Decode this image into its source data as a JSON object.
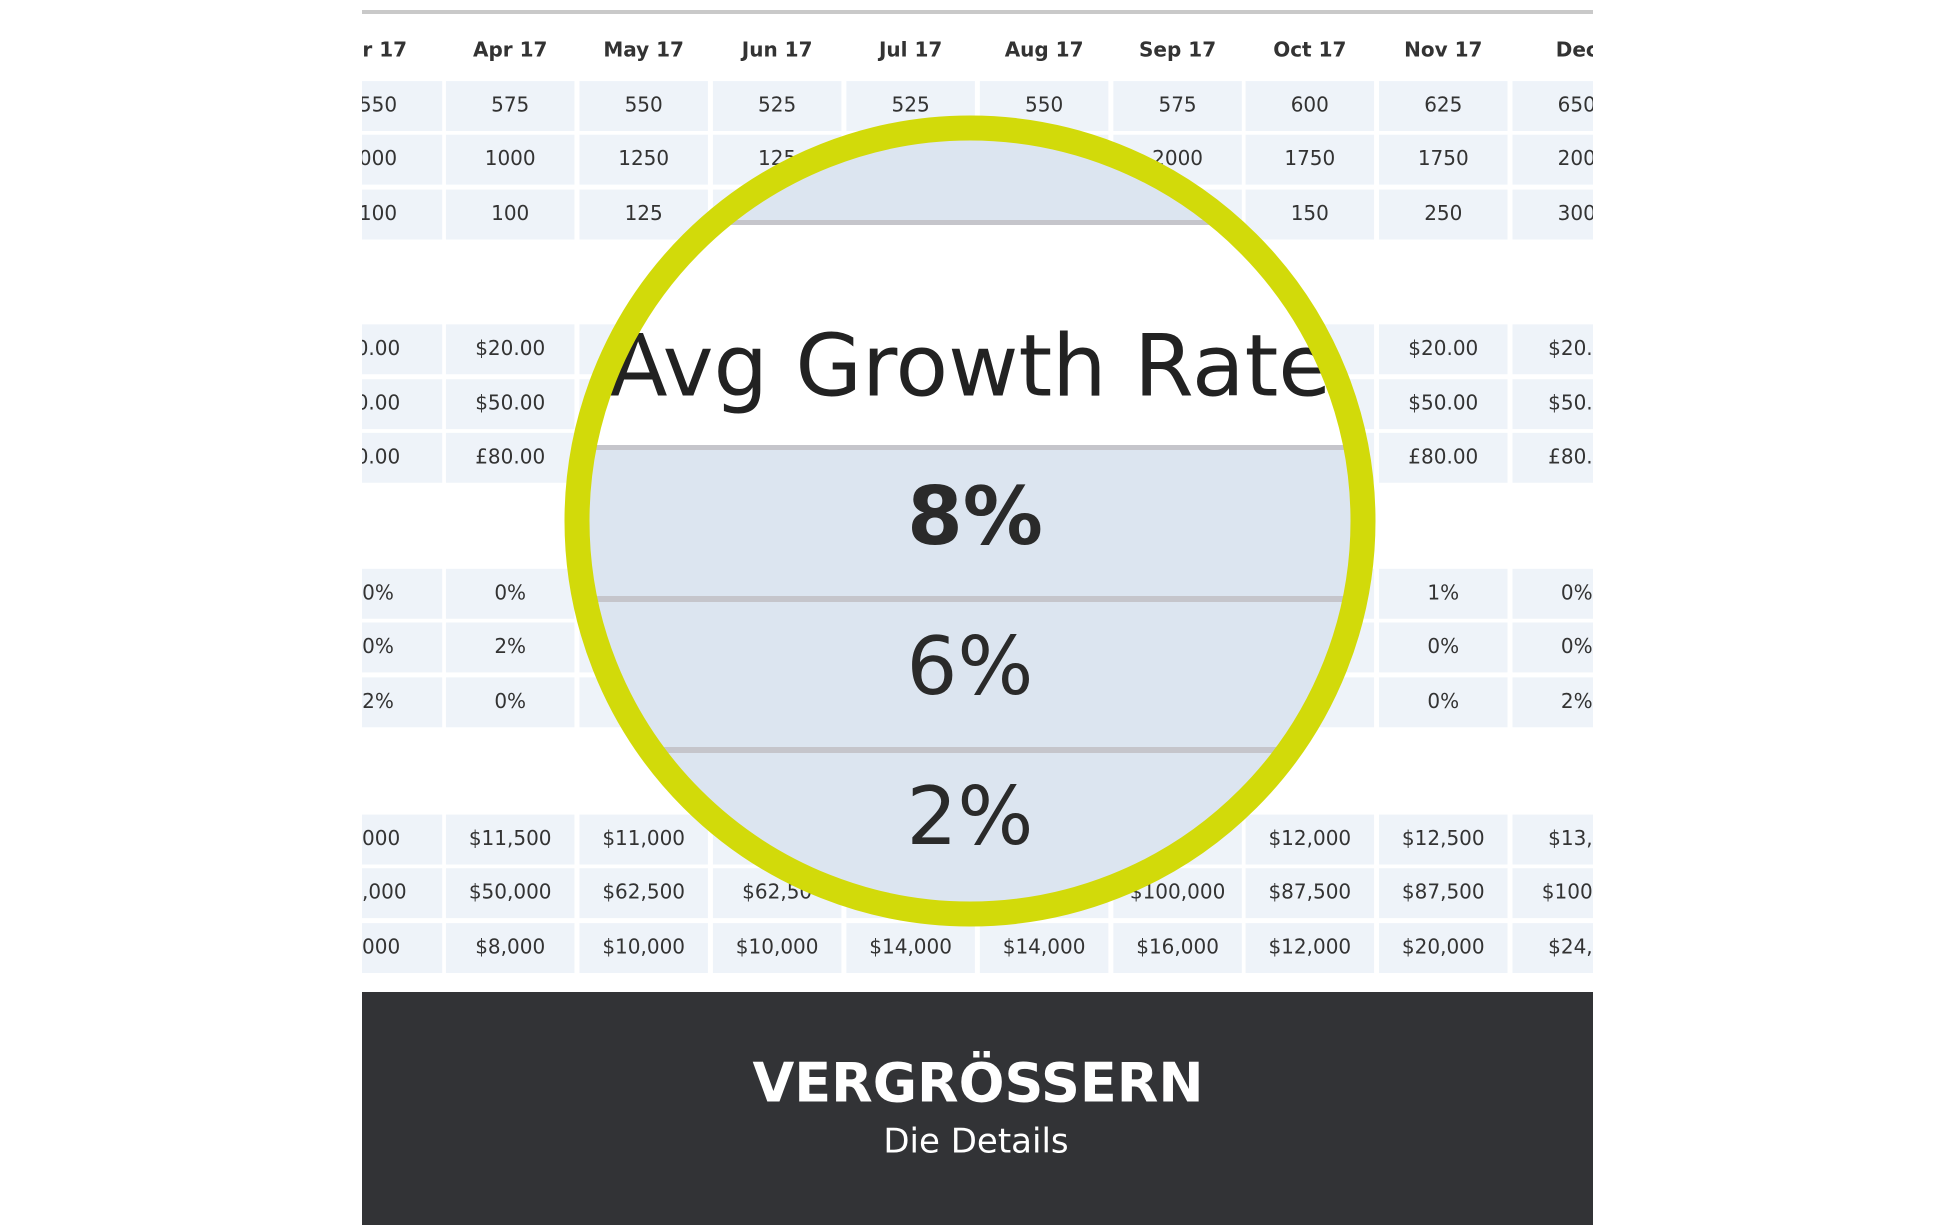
{
  "table": {
    "columns": [
      "ar 17",
      "Apr 17",
      "May 17",
      "Jun 17",
      "Jul 17",
      "Aug 17",
      "Sep 17",
      "Oct 17",
      "Nov 17",
      "Dec"
    ],
    "rows": [
      [
        "550",
        "575",
        "550",
        "525",
        "525",
        "550",
        "575",
        "600",
        "625",
        "650"
      ],
      [
        "000",
        "1000",
        "1250",
        "125",
        null,
        null,
        "2000",
        "1750",
        "1750",
        "200"
      ],
      [
        "100",
        "100",
        "125",
        null,
        null,
        null,
        null,
        "150",
        "250",
        "300"
      ],
      [
        "0.00",
        "$20.00",
        null,
        null,
        null,
        null,
        null,
        null,
        "$20.00",
        "$20.0"
      ],
      [
        "0.00",
        "$50.00",
        null,
        null,
        null,
        null,
        null,
        null,
        "$50.00",
        "$50.0"
      ],
      [
        "0.00",
        "£80.00",
        null,
        null,
        null,
        null,
        null,
        null,
        "£80.00",
        "£80.0"
      ],
      [
        "0%",
        "0%",
        null,
        null,
        null,
        null,
        null,
        null,
        "1%",
        "0%"
      ],
      [
        "0%",
        "2%",
        null,
        null,
        null,
        null,
        null,
        null,
        "0%",
        "0%"
      ],
      [
        "2%",
        "0%",
        null,
        null,
        null,
        null,
        null,
        null,
        "0%",
        "2%"
      ],
      [
        ",000",
        "$11,500",
        "$11,000",
        null,
        null,
        null,
        null,
        "$12,000",
        "$12,500",
        "$13,0"
      ],
      [
        "0,000",
        "$50,000",
        "$62,500",
        "$62,50",
        null,
        null,
        "$100,000",
        "$87,500",
        "$87,500",
        "$100,0"
      ],
      [
        ",000",
        "$8,000",
        "$10,000",
        "$10,000",
        "$14,000",
        "$14,000",
        "$16,000",
        "$12,000",
        "$20,000",
        "$24,0"
      ]
    ]
  },
  "magnifier": {
    "title": "Avg Growth Rate",
    "values": [
      "8%",
      "6%",
      "2%"
    ]
  },
  "footer": {
    "title": "VERGRÖSSERN",
    "subtitle": "Die Details"
  }
}
